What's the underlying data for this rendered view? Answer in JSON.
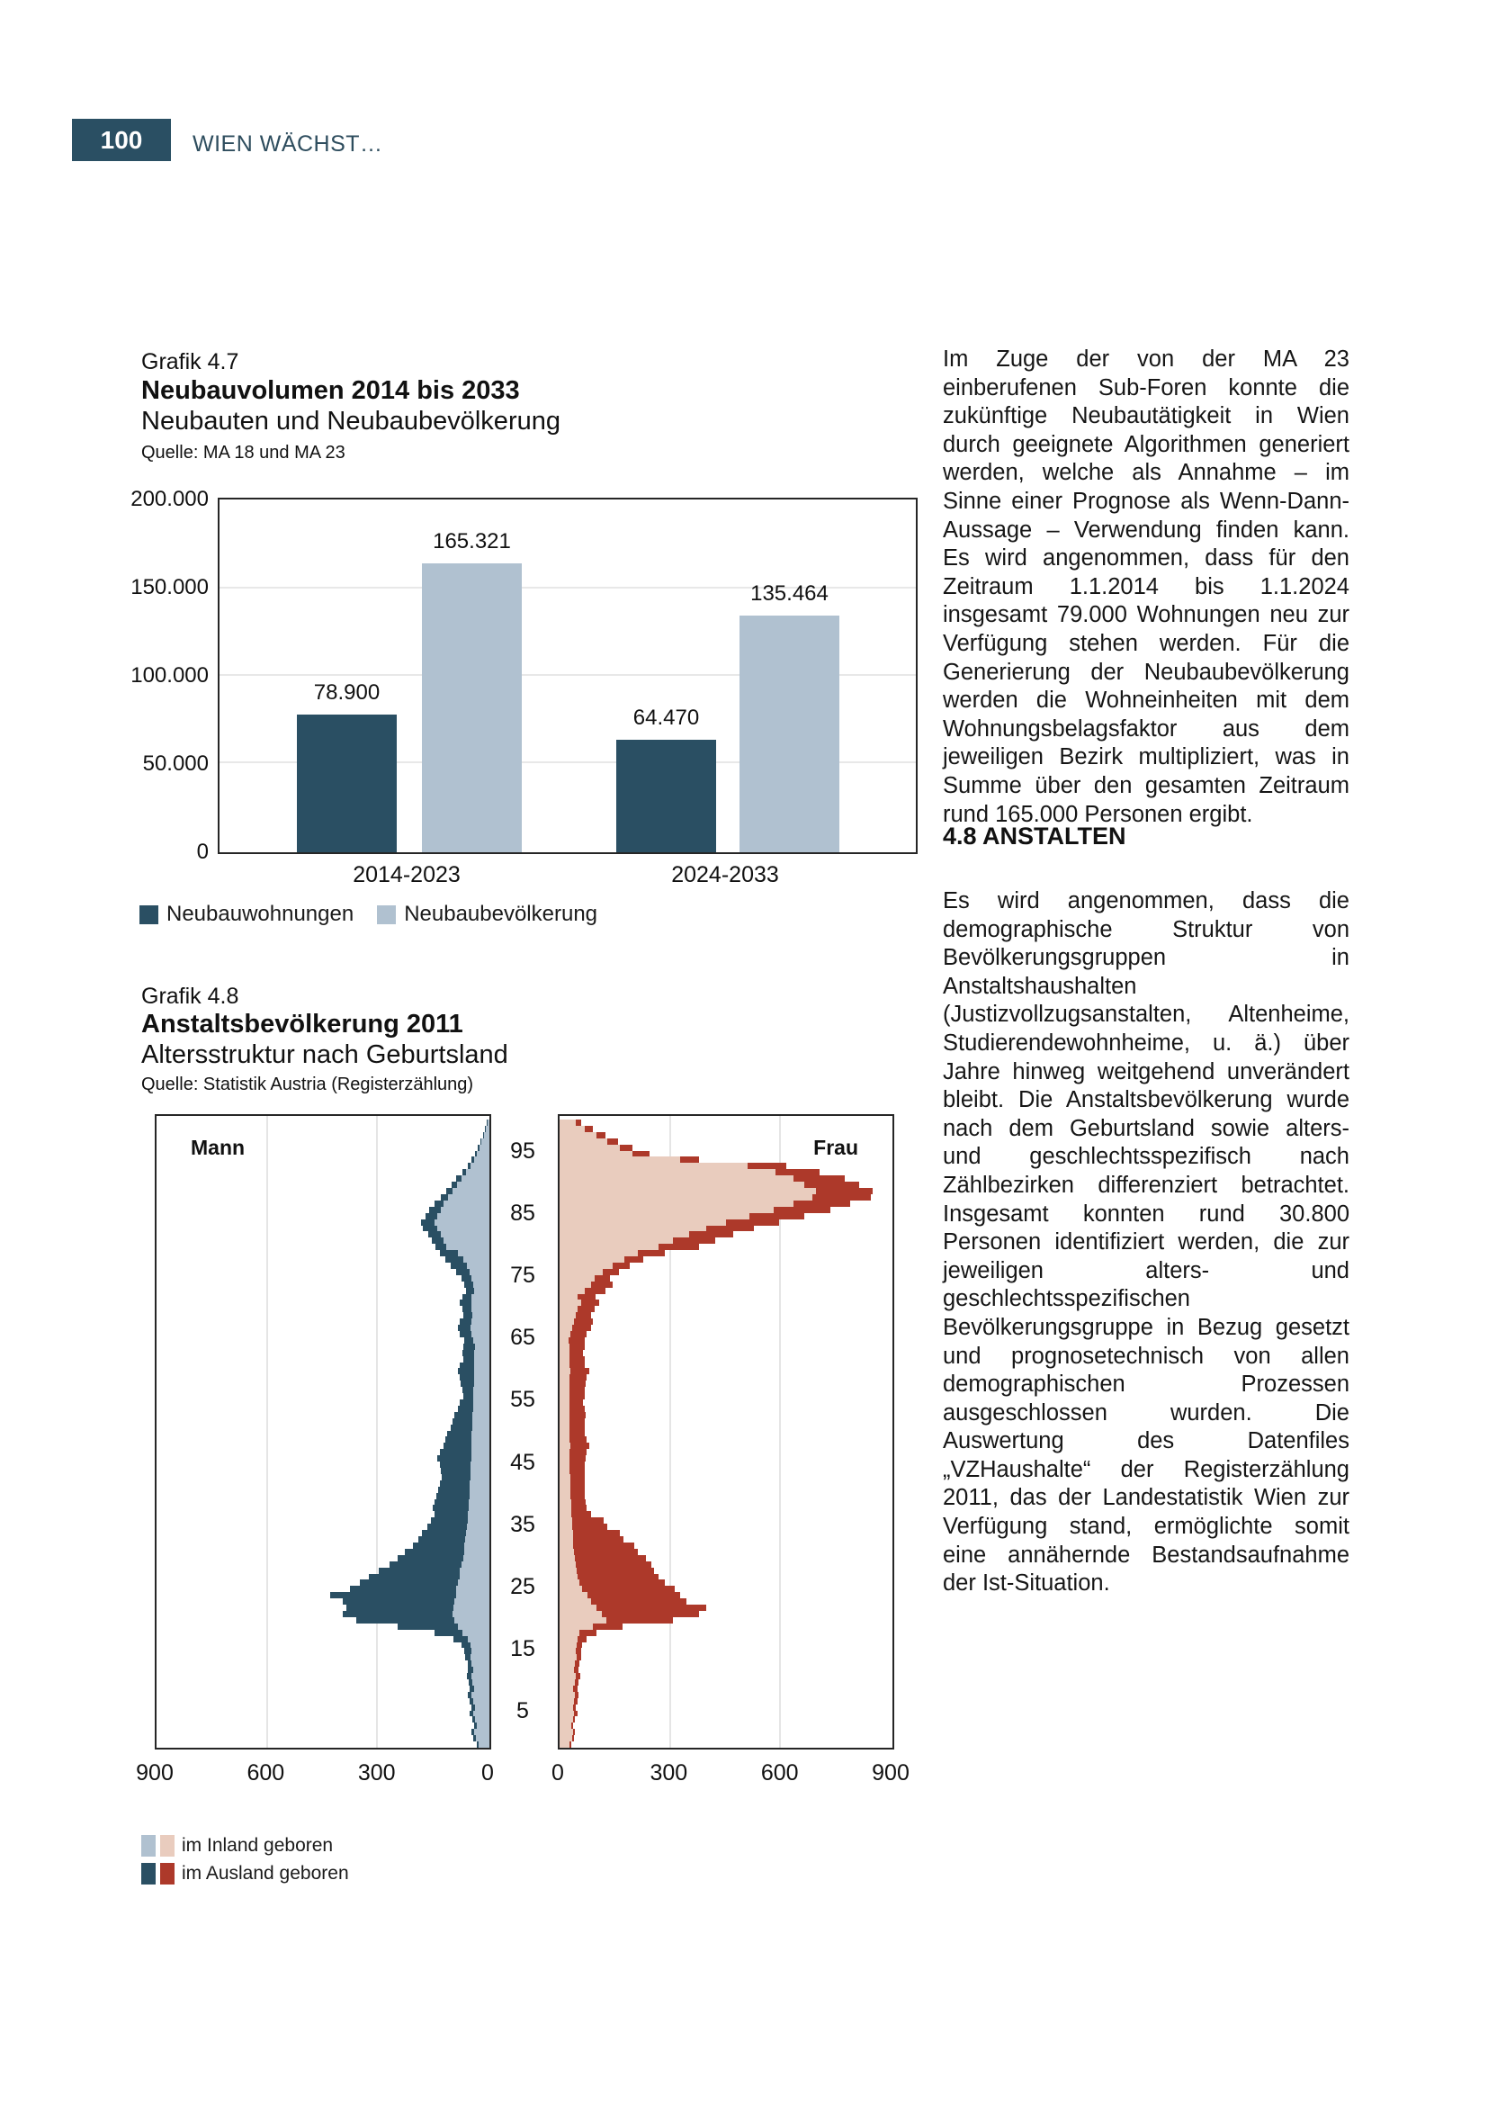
{
  "page": {
    "number": "100",
    "header_title": "WIEN WÄCHST…"
  },
  "colors": {
    "dark_blue": "#2a4f63",
    "light_blue": "#b0c1d0",
    "dark_red": "#ad392a",
    "light_pink": "#e9ccbe",
    "grid": "#e8e8e8",
    "header_text": "#2e4d5e"
  },
  "chart1": {
    "grafik_label": "Grafik 4.7",
    "title": "Neubauvolumen 2014 bis 2033",
    "subtitle": "Neubauten und Neubaubevölkerung",
    "source": "Quelle: MA 18 und MA 23",
    "legend": [
      "Neubauwohnungen",
      "Neubaubevölkerung"
    ]
  },
  "chart2": {
    "grafik_label": "Grafik 4.8",
    "title": "Anstaltsbevölkerung 2011",
    "subtitle": "Altersstruktur nach Geburtsland",
    "source": "Quelle: Statistik Austria (Registerzählung)",
    "left_label": "Mann",
    "right_label": "Frau",
    "legend": [
      "im Inland geboren",
      "im Ausland geboren"
    ]
  },
  "article": {
    "paragraph1": "Im Zuge der von der MA 23 einberufenen Sub-Foren konnte die zukünftige Neubautätigkeit in Wien durch geeignete Algorithmen generiert werden, welche als Annahme – im Sinne einer Prognose als Wenn-Dann-Aussage – Verwendung finden kann. Es wird angenommen, dass für den Zeitraum 1.1.2014 bis 1.1.2024 insgesamt 79.000 Wohnungen neu zur Verfügung stehen werden. Für die Generierung der Neubaubevölkerung werden die Wohneinheiten mit dem Wohnungsbelagsfaktor aus dem jeweiligen Bezirk multipliziert, was in Summe über den gesamten Zeitraum rund 165.000 Personen ergibt.",
    "heading": "4.8 ANSTALTEN",
    "paragraph2": "Es wird angenommen, dass die demographische Struktur von Bevölkerungsgruppen in Anstaltshaushalten (Justizvollzugsanstalten, Altenheime, Studierendewohnheime, u. ä.) über Jahre hinweg weitgehend unverändert bleibt. Die Anstaltsbevölkerung wurde nach dem Geburtsland sowie alters- und geschlechtsspezifisch nach Zählbezirken differenziert betrachtet. Insgesamt konnten rund 30.800 Personen identifiziert werden, die zur jeweiligen alters- und geschlechtsspezifischen Bevölkerungsgruppe in Bezug gesetzt und prognosetechnisch von allen demographischen Prozessen ausgeschlossen wurden. Die Auswertung des Datenfiles „VZHaushalte“ der Registerzählung 2011, das der Landestatistik Wien zur Verfügung stand, ermöglichte somit eine annähernde Bestandsaufnahme der Ist-Situation."
  },
  "chart_data": [
    {
      "type": "bar",
      "title": "Neubauvolumen 2014 bis 2033",
      "categories": [
        "2014-2023",
        "2024-2033"
      ],
      "series": [
        {
          "name": "Neubauwohnungen",
          "values": [
            78900,
            64470
          ],
          "labels": [
            "78.900",
            "64.470"
          ],
          "color": "#2a4f63"
        },
        {
          "name": "Neubaubevölkerung",
          "values": [
            165321,
            135464
          ],
          "labels": [
            "165.321",
            "135.464"
          ],
          "color": "#b0c1d0"
        }
      ],
      "ylim": [
        0,
        200000
      ],
      "y_ticks": [
        {
          "value": 200000,
          "label": "200.000"
        },
        {
          "value": 150000,
          "label": "150.000"
        },
        {
          "value": 100000,
          "label": "100.000"
        },
        {
          "value": 50000,
          "label": "50.000"
        },
        {
          "value": 0,
          "label": "0"
        }
      ],
      "grid": true,
      "legend_position": "bottom"
    },
    {
      "type": "pyramid",
      "title": "Anstaltsbevölkerung 2011 – Altersstruktur nach Geburtsland",
      "age_min": 0,
      "age_max": 100,
      "x_max": 900,
      "x_ticks_left": [
        "900",
        "600",
        "300",
        "0"
      ],
      "x_ticks_right": [
        "0",
        "300",
        "600",
        "900"
      ],
      "age_tick_labels": [
        5,
        15,
        25,
        35,
        45,
        55,
        65,
        75,
        85,
        95
      ],
      "series_names": [
        "im Inland geboren",
        "im Ausland geboren"
      ],
      "men": {
        "inland": [
          30,
          38,
          42,
          35,
          40,
          45,
          40,
          44,
          48,
          42,
          46,
          50,
          44,
          48,
          52,
          50,
          52,
          60,
          75,
          85,
          95,
          100,
          98,
          95,
          92,
          90,
          85,
          82,
          80,
          76,
          72,
          70,
          68,
          66,
          64,
          62,
          60,
          58,
          57,
          56,
          55,
          54,
          53,
          52,
          52,
          51,
          50,
          50,
          49,
          48,
          48,
          47,
          46,
          46,
          45,
          45,
          44,
          44,
          43,
          43,
          42,
          42,
          41,
          41,
          40,
          45,
          50,
          52,
          50,
          46,
          48,
          50,
          48,
          42,
          45,
          48,
          55,
          62,
          72,
          85,
          118,
          126,
          134,
          142,
          150,
          142,
          134,
          125,
          113,
          100,
          88,
          76,
          63,
          52,
          43,
          34,
          27,
          21,
          15,
          10,
          6
        ],
        "ausland": [
          5,
          6,
          6,
          8,
          7,
          8,
          10,
          9,
          10,
          12,
          10,
          12,
          14,
          12,
          15,
          18,
          25,
          38,
          75,
          165,
          270,
          300,
          292,
          307,
          343,
          290,
          270,
          248,
          222,
          196,
          178,
          160,
          142,
          129,
          121,
          108,
          100,
          92,
          98,
          94,
          90,
          86,
          82,
          78,
          80,
          84,
          93,
          85,
          76,
          72,
          67,
          58,
          54,
          49,
          40,
          35,
          28,
          31,
          35,
          37,
          43,
          38,
          31,
          34,
          32,
          25,
          30,
          33,
          30,
          26,
          27,
          30,
          27,
          23,
          25,
          28,
          35,
          43,
          48,
          50,
          30,
          32,
          34,
          40,
          38,
          32,
          30,
          24,
          20,
          18,
          15,
          14,
          12,
          8,
          7,
          6,
          5,
          4,
          3,
          2,
          1
        ]
      },
      "women": {
        "inland": [
          28,
          34,
          38,
          32,
          36,
          40,
          36,
          40,
          43,
          38,
          42,
          45,
          40,
          43,
          46,
          44,
          46,
          50,
          55,
          90,
          127,
          115,
          100,
          85,
          75,
          62,
          55,
          50,
          46,
          44,
          42,
          40,
          38,
          37,
          36,
          35,
          34,
          33,
          32,
          31,
          30,
          30,
          29,
          29,
          28,
          28,
          28,
          28,
          29,
          28,
          28,
          27,
          27,
          27,
          26,
          26,
          26,
          27,
          27,
          28,
          29,
          28,
          28,
          27,
          28,
          25,
          30,
          35,
          40,
          45,
          50,
          60,
          48,
          70,
          85,
          95,
          118,
          145,
          178,
          215,
          270,
          310,
          355,
          400,
          455,
          520,
          585,
          640,
          690,
          700,
          670,
          640,
          590,
          515,
          330,
          200,
          165,
          130,
          100,
          70,
          45
        ],
        "ausland": [
          4,
          5,
          5,
          6,
          6,
          8,
          8,
          9,
          9,
          10,
          10,
          11,
          12,
          12,
          13,
          14,
          16,
          25,
          45,
          81,
          182,
          265,
          302,
          262,
          255,
          252,
          232,
          220,
          213,
          206,
          195,
          175,
          166,
          138,
          129,
          95,
          87,
          52,
          43,
          41,
          40,
          40,
          39,
          41,
          40,
          42,
          44,
          47,
          51,
          47,
          42,
          41,
          43,
          45,
          42,
          39,
          42,
          43,
          45,
          47,
          51,
          42,
          40,
          38,
          42,
          45,
          45,
          50,
          52,
          40,
          45,
          48,
          50,
          55,
          60,
          42,
          45,
          48,
          50,
          72,
          110,
          115,
          120,
          130,
          145,
          150,
          155,
          155,
          160,
          155,
          150,
          140,
          120,
          105,
          50,
          45,
          35,
          30,
          25,
          20,
          15
        ]
      }
    }
  ]
}
